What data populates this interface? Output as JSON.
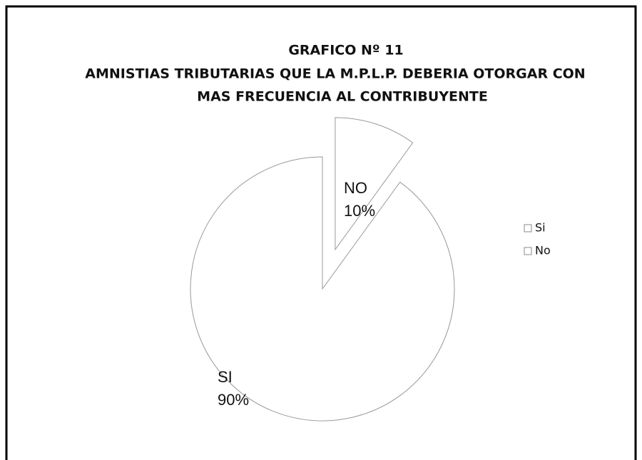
{
  "chart_data": {
    "type": "pie",
    "title": "GRAFICO Nº 11",
    "subtitle": [
      "AMNISTIAS TRIBUTARIAS QUE LA M.P.L.P. DEBERIA OTORGAR  CON",
      "MAS FRECUENCIA AL CONTRIBUYENTE"
    ],
    "categories": [
      "Si",
      "No"
    ],
    "values": [
      90,
      10
    ],
    "slice_labels": [
      "SI",
      "NO"
    ],
    "value_labels": [
      "90%",
      "10%"
    ],
    "colors": [
      "#ffffff",
      "#ffffff"
    ],
    "legend": "right"
  }
}
